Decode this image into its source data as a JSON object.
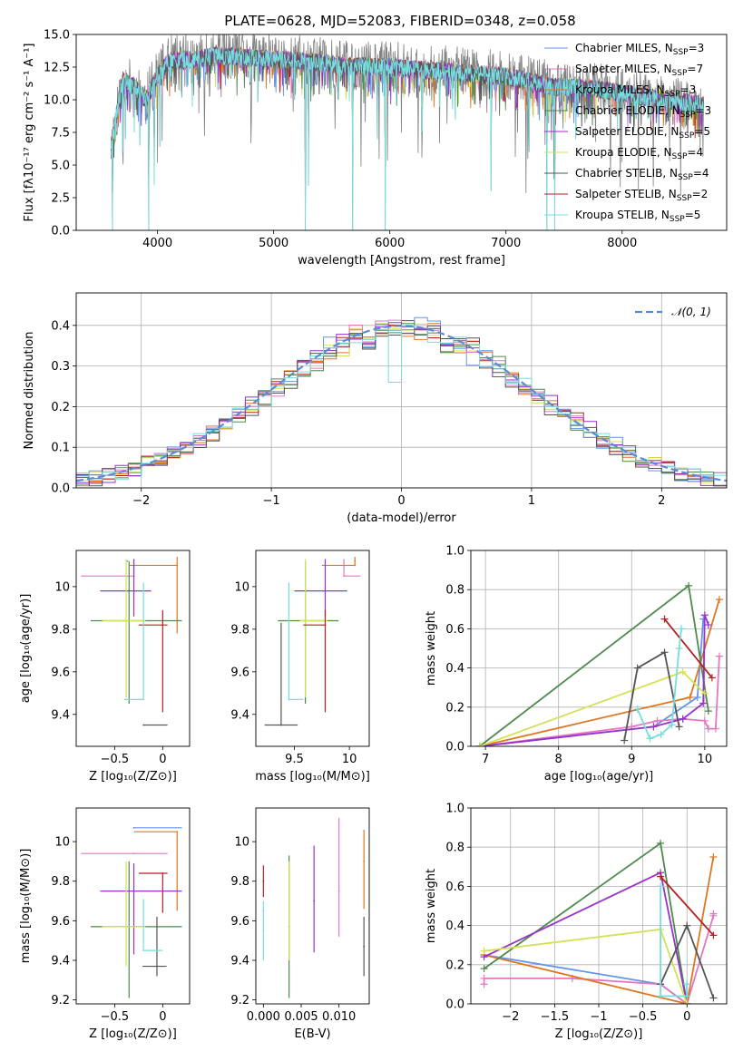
{
  "figure": {
    "title": "PLATE=0628, MJD=52083, FIBERID=0348, z=0.058"
  },
  "models": [
    {
      "label": "Chabrier MILES, N",
      "sub": "SSP",
      "suffix": "=3",
      "color": "#6495ed"
    },
    {
      "label": "Salpeter MILES, N",
      "sub": "SSP",
      "suffix": "=7",
      "color": "#e377c2"
    },
    {
      "label": "Kroupa MILES, N",
      "sub": "SSP",
      "suffix": "=3",
      "color": "#dd7722"
    },
    {
      "label": "Chabrier ELODIE, N",
      "sub": "SSP",
      "suffix": "=3",
      "color": "#4e8a4e"
    },
    {
      "label": "Salpeter ELODIE, N",
      "sub": "SSP",
      "suffix": "=5",
      "color": "#9932cc"
    },
    {
      "label": "Kroupa ELODIE, N",
      "sub": "SSP",
      "suffix": "=4",
      "color": "#d4e157"
    },
    {
      "label": "Chabrier STELIB, N",
      "sub": "SSP",
      "suffix": "=4",
      "color": "#555555"
    },
    {
      "label": "Salpeter STELIB, N",
      "sub": "SSP",
      "suffix": "=2",
      "color": "#b22222"
    },
    {
      "label": "Kroupa STELIB, N",
      "sub": "SSP",
      "suffix": "=5",
      "color": "#77dddd"
    }
  ],
  "chart_data": [
    {
      "id": "spectrum",
      "type": "line",
      "xlabel": "wavelength [Angstrom, rest frame]",
      "ylabel": "Flux [fλ10⁻¹⁷ erg cm⁻² s⁻¹ A⁻¹]",
      "xlim": [
        3300,
        8900
      ],
      "ylim": [
        0,
        15
      ],
      "xticks": [
        4000,
        5000,
        6000,
        7000,
        8000
      ],
      "yticks": [
        "0.0",
        "2.5",
        "5.0",
        "7.5",
        "10.0",
        "12.5",
        "15.0"
      ],
      "data_color": "#808080",
      "model_color": "#77dddd",
      "data_range": [
        3600,
        8700
      ],
      "continuum": {
        "x": [
          3600,
          3700,
          3800,
          3900,
          4000,
          4100,
          4200,
          4300,
          4500,
          4800,
          5200,
          5600,
          6000,
          6400,
          7000,
          7400,
          7800,
          8200,
          8700
        ],
        "y": [
          6.5,
          11.5,
          11.0,
          10.0,
          11.8,
          13.0,
          13.0,
          13.0,
          13.4,
          13.2,
          13.0,
          12.6,
          12.5,
          12.2,
          11.8,
          11.0,
          10.8,
          10.2,
          9.6
        ]
      },
      "dips": [
        {
          "x": 3612,
          "y": 0.0
        },
        {
          "x": 3640,
          "y": 6.8
        },
        {
          "x": 3700,
          "y": 6.0
        },
        {
          "x": 3725,
          "y": 7.0
        },
        {
          "x": 3800,
          "y": 7.5
        },
        {
          "x": 3848,
          "y": 6.5
        },
        {
          "x": 3925,
          "y": 0.0
        },
        {
          "x": 3970,
          "y": 3.5
        },
        {
          "x": 4020,
          "y": 6.4
        },
        {
          "x": 4300,
          "y": 9.5
        },
        {
          "x": 4862,
          "y": 9.8
        },
        {
          "x": 5180,
          "y": 10.0
        },
        {
          "x": 5270,
          "y": 0.0
        },
        {
          "x": 5300,
          "y": 3.4
        },
        {
          "x": 5680,
          "y": 0.0
        },
        {
          "x": 5890,
          "y": 7.0
        },
        {
          "x": 5960,
          "y": 0.0
        },
        {
          "x": 6280,
          "y": 7.5
        },
        {
          "x": 6563,
          "y": 8.5
        },
        {
          "x": 6870,
          "y": 3.0
        },
        {
          "x": 7200,
          "y": 6.0
        },
        {
          "x": 7350,
          "y": 0.0
        },
        {
          "x": 7420,
          "y": 0.0
        },
        {
          "x": 7600,
          "y": 7.0
        }
      ]
    },
    {
      "id": "residuals",
      "type": "histogram",
      "xlabel": "(data-model)/error",
      "ylabel": "Normed distribution",
      "xlim": [
        -2.5,
        2.5
      ],
      "ylim": [
        0,
        0.48
      ],
      "xticks": [
        -2,
        -1,
        0,
        1,
        2
      ],
      "yticks": [
        "0.0",
        "0.1",
        "0.2",
        "0.3",
        "0.4"
      ],
      "bin_width": 0.1,
      "legend": "𝒩(0, 1)",
      "reference_color": "#5b8ad6",
      "spikes": [
        {
          "x": 0.05,
          "value": 0.41
        },
        {
          "x": 0.45,
          "value": 0.42
        },
        {
          "x": 0.5,
          "value": 0.47
        },
        {
          "x": -0.05,
          "value": 0.26
        }
      ]
    },
    {
      "id": "age-vs-z",
      "type": "errorbar",
      "xlabel": "Z [log₁₀(Z/Z⊙)]",
      "ylabel": "age  [log₁₀(age/yr)]",
      "xlim": [
        -0.9,
        0.28
      ],
      "ylim": [
        9.25,
        10.17
      ],
      "xticks": [
        -0.5,
        0.0
      ],
      "yticks": [
        9.4,
        9.6,
        9.8,
        10.0
      ],
      "points": [
        {
          "model": 0,
          "x": -0.37,
          "y": 10.12,
          "xerr": [
            0.0,
            0.0
          ],
          "yerr": [
            0.0,
            0.0
          ]
        },
        {
          "model": 1,
          "x": -0.3,
          "y": 10.05,
          "xerr": [
            0.55,
            0.0
          ],
          "yerr": [
            0.0,
            0.08
          ]
        },
        {
          "model": 2,
          "x": 0.15,
          "y": 10.1,
          "xerr": [
            0.5,
            0.0
          ],
          "yerr": [
            0.32,
            0.04
          ]
        },
        {
          "model": 3,
          "x": -0.35,
          "y": 9.84,
          "xerr": [
            0.4,
            0.55
          ],
          "yerr": [
            0.39,
            0.28
          ]
        },
        {
          "model": 4,
          "x": -0.3,
          "y": 9.98,
          "xerr": [
            0.35,
            0.18
          ],
          "yerr": [
            0.12,
            0.15
          ]
        },
        {
          "model": 5,
          "x": -0.38,
          "y": 9.84,
          "xerr": [
            0.25,
            0.2
          ],
          "yerr": [
            0.36,
            0.29
          ]
        },
        {
          "model": 6,
          "x": -0.2,
          "y": 9.35,
          "xerr": [
            0.0,
            0.25
          ],
          "yerr": [
            0.0,
            0.0
          ]
        },
        {
          "model": 7,
          "x": 0.0,
          "y": 9.82,
          "xerr": [
            0.25,
            0.05
          ],
          "yerr": [
            0.41,
            0.07
          ]
        },
        {
          "model": 8,
          "x": -0.2,
          "y": 9.47,
          "xerr": [
            0.2,
            0.0
          ],
          "yerr": [
            0.0,
            0.55
          ]
        }
      ]
    },
    {
      "id": "age-vs-mass",
      "type": "errorbar",
      "xlabel": "mass [log₁₀(M/M⊙)]",
      "ylabel": "",
      "xlim": [
        9.15,
        10.18
      ],
      "ylim": [
        9.25,
        10.17
      ],
      "xticks": [
        9.5,
        10.0
      ],
      "yticks": [
        9.4,
        9.6,
        9.8,
        10.0
      ],
      "points": [
        {
          "model": 0,
          "x": 10.05,
          "y": 10.12,
          "xerr": [
            0.0,
            0.0
          ],
          "yerr": [
            0.0,
            0.0
          ]
        },
        {
          "model": 1,
          "x": 9.95,
          "y": 10.05,
          "xerr": [
            0.0,
            0.15
          ],
          "yerr": [
            0.0,
            0.08
          ]
        },
        {
          "model": 2,
          "x": 10.05,
          "y": 10.1,
          "xerr": [
            0.3,
            0.0
          ],
          "yerr": [
            0.0,
            0.04
          ]
        },
        {
          "model": 3,
          "x": 9.6,
          "y": 9.84,
          "xerr": [
            0.25,
            0.3
          ],
          "yerr": [
            0.39,
            0.28
          ]
        },
        {
          "model": 4,
          "x": 9.78,
          "y": 9.98,
          "xerr": [
            0.28,
            0.2
          ],
          "yerr": [
            0.12,
            0.15
          ]
        },
        {
          "model": 5,
          "x": 9.6,
          "y": 9.84,
          "xerr": [
            0.05,
            0.2
          ],
          "yerr": [
            0.36,
            0.29
          ]
        },
        {
          "model": 6,
          "x": 9.38,
          "y": 9.35,
          "xerr": [
            0.15,
            0.15
          ],
          "yerr": [
            0.0,
            0.48
          ]
        },
        {
          "model": 7,
          "x": 9.78,
          "y": 9.82,
          "xerr": [
            0.2,
            0.0
          ],
          "yerr": [
            0.41,
            0.07
          ]
        },
        {
          "model": 8,
          "x": 9.45,
          "y": 9.47,
          "xerr": [
            0.0,
            0.13
          ],
          "yerr": [
            0.0,
            0.55
          ]
        }
      ]
    },
    {
      "id": "mass-weight-vs-age",
      "type": "line",
      "xlabel": "age  [log₁₀(age/yr)]",
      "ylabel": "mass weight",
      "xlim": [
        6.8,
        10.3
      ],
      "ylim": [
        0,
        1
      ],
      "xticks": [
        7,
        8,
        9,
        10
      ],
      "yticks": [
        "0.0",
        "0.2",
        "0.4",
        "0.6",
        "0.8",
        "1.0"
      ],
      "series": [
        {
          "model": 0,
          "x": [
            6.92,
            9.3,
            9.9,
            9.98
          ],
          "y": [
            0.0,
            0.1,
            0.25,
            0.65
          ]
        },
        {
          "model": 1,
          "x": [
            6.92,
            9.0,
            9.35,
            9.7,
            10.0,
            10.05,
            10.15,
            10.2
          ],
          "y": [
            0.0,
            0.1,
            0.13,
            0.14,
            0.13,
            0.09,
            0.09,
            0.46
          ]
        },
        {
          "model": 2,
          "x": [
            6.92,
            9.8,
            10.2
          ],
          "y": [
            0.0,
            0.25,
            0.75
          ]
        },
        {
          "model": 3,
          "x": [
            6.92,
            9.78,
            10.05
          ],
          "y": [
            0.0,
            0.82,
            0.18
          ]
        },
        {
          "model": 4,
          "x": [
            6.92,
            9.3,
            9.7,
            9.98,
            10.0,
            10.05
          ],
          "y": [
            0.0,
            0.1,
            0.14,
            0.22,
            0.67,
            0.62
          ]
        },
        {
          "model": 5,
          "x": [
            6.92,
            9.7,
            10.0
          ],
          "y": [
            0.0,
            0.38,
            0.27
          ]
        },
        {
          "model": 6,
          "x": [
            8.9,
            9.08,
            9.45,
            9.65
          ],
          "y": [
            0.03,
            0.4,
            0.48,
            0.1
          ]
        },
        {
          "model": 7,
          "x": [
            9.45,
            10.1
          ],
          "y": [
            0.65,
            0.35
          ]
        },
        {
          "model": 8,
          "x": [
            9.08,
            9.25,
            9.4,
            9.55,
            9.65,
            9.68
          ],
          "y": [
            0.19,
            0.04,
            0.06,
            0.11,
            0.5,
            0.6
          ]
        }
      ]
    },
    {
      "id": "mass-vs-z",
      "type": "errorbar",
      "xlabel": "Z [log₁₀(Z/Z⊙)]",
      "ylabel": "mass [log₁₀(M/M⊙)]",
      "xlim": [
        -0.9,
        0.28
      ],
      "ylim": [
        9.18,
        10.17
      ],
      "xticks": [
        -0.5,
        0.0
      ],
      "yticks": [
        9.2,
        9.4,
        9.6,
        9.8,
        10.0
      ],
      "points": [
        {
          "model": 0,
          "x": -0.3,
          "y": 10.07,
          "xerr": [
            0.0,
            0.5
          ],
          "yerr": [
            0.0,
            0.0
          ]
        },
        {
          "model": 1,
          "x": -0.3,
          "y": 9.94,
          "xerr": [
            0.55,
            0.35
          ],
          "yerr": [
            0.0,
            0.0
          ]
        },
        {
          "model": 2,
          "x": 0.15,
          "y": 10.05,
          "xerr": [
            0.45,
            0.0
          ],
          "yerr": [
            0.4,
            0.0
          ]
        },
        {
          "model": 3,
          "x": -0.35,
          "y": 9.57,
          "xerr": [
            0.4,
            0.55
          ],
          "yerr": [
            0.36,
            0.33
          ]
        },
        {
          "model": 4,
          "x": -0.3,
          "y": 9.75,
          "xerr": [
            0.35,
            0.5
          ],
          "yerr": [
            0.32,
            0.14
          ]
        },
        {
          "model": 5,
          "x": -0.38,
          "y": 9.57,
          "xerr": [
            0.25,
            0.2
          ],
          "yerr": [
            0.2,
            0.33
          ]
        },
        {
          "model": 6,
          "x": -0.06,
          "y": 9.37,
          "xerr": [
            0.15,
            0.1
          ],
          "yerr": [
            0.05,
            0.25
          ]
        },
        {
          "model": 7,
          "x": 0.0,
          "y": 9.84,
          "xerr": [
            0.25,
            0.05
          ],
          "yerr": [
            0.2,
            0.0
          ]
        },
        {
          "model": 8,
          "x": -0.2,
          "y": 9.45,
          "xerr": [
            0.0,
            0.2
          ],
          "yerr": [
            0.0,
            0.26
          ]
        }
      ]
    },
    {
      "id": "mass-vs-ebv",
      "type": "errorbar",
      "xlabel": "E(B-V)",
      "ylabel": "",
      "xlim": [
        -0.001,
        0.014
      ],
      "ylim": [
        9.18,
        10.17
      ],
      "xticks": [
        "0.000",
        "0.005",
        "0.010"
      ],
      "yticks": [
        9.2,
        9.4,
        9.6,
        9.8,
        10.0
      ],
      "points": [
        {
          "model": 0,
          "x": 0.0,
          "y": 9.65,
          "xerr": [
            0.0,
            0.0
          ],
          "yerr": [
            0.0,
            0.0
          ]
        },
        {
          "model": 1,
          "x": 0.01,
          "y": 9.75,
          "xerr": [
            0.0,
            0.0
          ],
          "yerr": [
            0.23,
            0.37
          ]
        },
        {
          "model": 2,
          "x": 0.0133,
          "y": 9.9,
          "xerr": [
            0.0,
            0.0
          ],
          "yerr": [
            0.24,
            0.16
          ]
        },
        {
          "model": 3,
          "x": 0.0034,
          "y": 9.57,
          "xerr": [
            0.0,
            0.0
          ],
          "yerr": [
            0.36,
            0.36
          ]
        },
        {
          "model": 4,
          "x": 0.0067,
          "y": 9.7,
          "xerr": [
            0.0,
            0.0
          ],
          "yerr": [
            0.26,
            0.28
          ]
        },
        {
          "model": 5,
          "x": 0.0034,
          "y": 9.6,
          "xerr": [
            0.0,
            0.0
          ],
          "yerr": [
            0.2,
            0.3
          ]
        },
        {
          "model": 6,
          "x": 0.0133,
          "y": 9.47,
          "xerr": [
            0.0,
            0.0
          ],
          "yerr": [
            0.15,
            0.15
          ]
        },
        {
          "model": 7,
          "x": 0.0,
          "y": 9.8,
          "xerr": [
            0.0,
            0.0
          ],
          "yerr": [
            0.08,
            0.08
          ]
        },
        {
          "model": 8,
          "x": 0.0,
          "y": 9.55,
          "xerr": [
            0.0,
            0.0
          ],
          "yerr": [
            0.15,
            0.15
          ]
        }
      ]
    },
    {
      "id": "mass-weight-vs-z",
      "type": "line",
      "xlabel": "Z [log₁₀(Z/Z⊙)]",
      "ylabel": "mass weight",
      "xlim": [
        -2.45,
        0.45
      ],
      "ylim": [
        0,
        1
      ],
      "xticks": [
        -2.0,
        -1.5,
        -1.0,
        -0.5,
        0.0
      ],
      "yticks": [
        "0.0",
        "0.2",
        "0.4",
        "0.6",
        "0.8",
        "1.0"
      ],
      "series": [
        {
          "model": 0,
          "x": [
            -2.3,
            -0.3,
            0.0,
            0.0
          ],
          "y": [
            0.25,
            0.1,
            0.0,
            0.1
          ]
        },
        {
          "model": 1,
          "x": [
            -2.3,
            -2.3,
            -1.3,
            -0.3,
            0.0,
            0.3,
            0.3
          ],
          "y": [
            0.1,
            0.13,
            0.13,
            0.1,
            0.0,
            0.45,
            0.46
          ]
        },
        {
          "model": 2,
          "x": [
            -2.3,
            0.0,
            0.3
          ],
          "y": [
            0.25,
            0.0,
            0.75
          ]
        },
        {
          "model": 3,
          "x": [
            -2.3,
            -0.3,
            0.0
          ],
          "y": [
            0.18,
            0.82,
            0.0
          ]
        },
        {
          "model": 4,
          "x": [
            -2.3,
            -0.3,
            0.0
          ],
          "y": [
            0.24,
            0.67,
            0.0
          ]
        },
        {
          "model": 5,
          "x": [
            -2.3,
            -0.3,
            0.0
          ],
          "y": [
            0.27,
            0.38,
            0.0
          ]
        },
        {
          "model": 6,
          "x": [
            -0.3,
            0.0,
            0.3
          ],
          "y": [
            0.1,
            0.4,
            0.03
          ]
        },
        {
          "model": 7,
          "x": [
            -0.3,
            0.3
          ],
          "y": [
            0.65,
            0.35
          ]
        },
        {
          "model": 8,
          "x": [
            -0.3,
            -0.3,
            0.0,
            0.0
          ],
          "y": [
            0.6,
            0.04,
            0.04,
            0.1
          ]
        }
      ]
    }
  ]
}
